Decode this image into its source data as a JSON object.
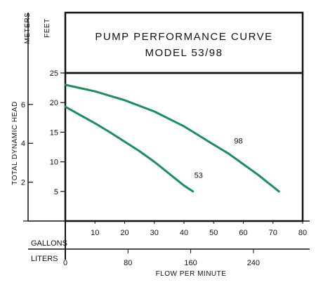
{
  "chart_data": {
    "type": "line",
    "title": "PUMP PERFORMANCE CURVE",
    "subtitle": "MODEL 53/98",
    "ylabel": "TOTAL DYNAMIC HEAD",
    "xlabel": "FLOW PER MINUTE",
    "y_unit_feet": "FEET",
    "y_unit_meters": "METERS",
    "x_unit_gallons": "GALLONS",
    "x_unit_liters": "LITERS",
    "xlim": [
      0,
      80
    ],
    "ylim": [
      0,
      25
    ],
    "feet_ticks": [
      5,
      10,
      15,
      20,
      25
    ],
    "meter_ticks": [
      2,
      4,
      6
    ],
    "gallon_ticks": [
      10,
      20,
      30,
      40,
      50,
      60,
      70,
      80
    ],
    "liter_ticks": [
      0,
      80,
      160,
      240
    ],
    "line_color": "#1a8f5c",
    "series": [
      {
        "name": "53",
        "x": [
          0,
          5,
          10,
          15,
          20,
          25,
          30,
          35,
          40,
          43
        ],
        "y": [
          19.3,
          17.9,
          16.5,
          15.0,
          13.4,
          11.8,
          10.0,
          8.0,
          6.0,
          5.0
        ]
      },
      {
        "name": "98",
        "x": [
          0,
          10,
          20,
          30,
          40,
          50,
          55,
          60,
          65,
          72
        ],
        "y": [
          23.0,
          21.9,
          20.4,
          18.5,
          16.0,
          12.9,
          11.4,
          9.6,
          7.8,
          5.0
        ]
      }
    ]
  }
}
